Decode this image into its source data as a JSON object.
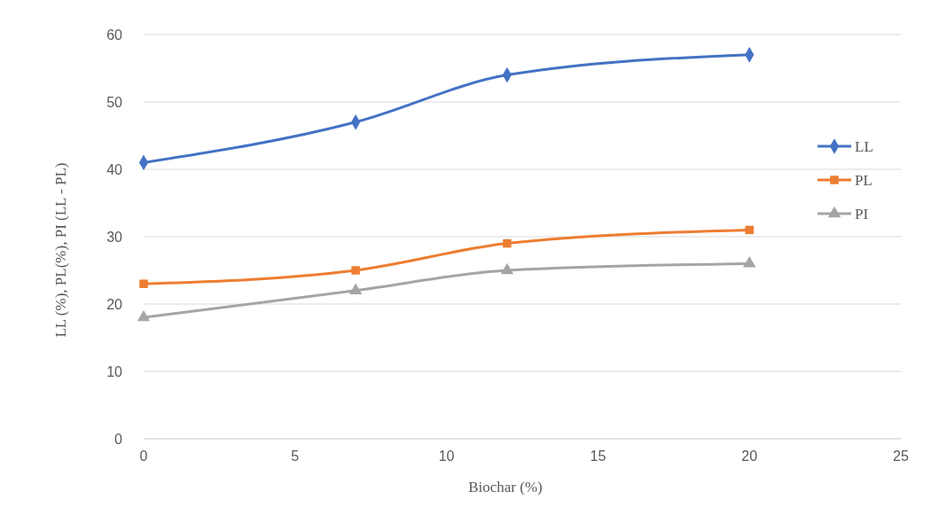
{
  "chart_data": {
    "type": "line",
    "xlabel": "Biochar (%)",
    "ylabel": "LL (%), PL(%), PI (LL - PL)",
    "x": [
      0,
      7,
      12,
      20
    ],
    "series": [
      {
        "name": "LL",
        "color": "#4472c4",
        "marker": "diamond",
        "values": [
          41,
          47,
          54,
          57
        ]
      },
      {
        "name": "PL",
        "color": "#ed7d31",
        "marker": "square",
        "values": [
          23,
          25,
          29,
          31
        ]
      },
      {
        "name": "PI",
        "color": "#a5a5a5",
        "marker": "triangle",
        "values": [
          18,
          22,
          25,
          26
        ]
      }
    ],
    "xlim": [
      0,
      25
    ],
    "xticks": [
      0,
      5,
      10,
      15,
      20,
      25
    ],
    "ylim": [
      0,
      60
    ],
    "yticks": [
      0,
      10,
      20,
      30,
      40,
      50,
      60
    ],
    "grid": "y",
    "legend": "right"
  }
}
